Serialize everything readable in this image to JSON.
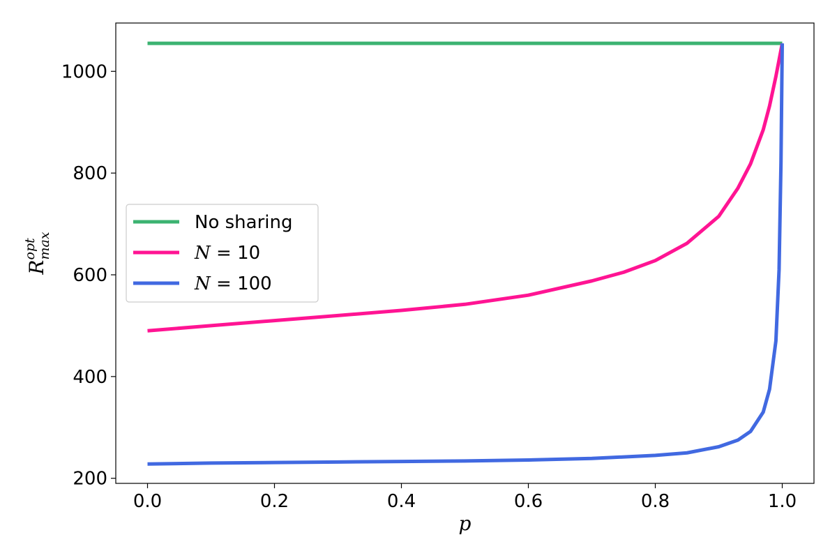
{
  "chart_data": {
    "type": "line",
    "title": "",
    "xlabel": "p",
    "ylabel": {
      "base": "R",
      "sup": "opt",
      "sub": "max"
    },
    "xlim": [
      -0.05,
      1.05
    ],
    "ylim": [
      190,
      1095
    ],
    "xticks": [
      0.0,
      0.2,
      0.4,
      0.6,
      0.8,
      1.0
    ],
    "xtick_labels": [
      "0.0",
      "0.2",
      "0.4",
      "0.6",
      "0.8",
      "1.0"
    ],
    "yticks": [
      200,
      400,
      600,
      800,
      1000
    ],
    "ytick_labels": [
      "200",
      "400",
      "600",
      "800",
      "1000"
    ],
    "grid": false,
    "legend_position": "center-left",
    "series": [
      {
        "name": "No sharing",
        "legend_parts": [
          {
            "text": "No sharing",
            "italic": false
          }
        ],
        "color": "#3cb371",
        "points": [
          [
            0.0,
            1055
          ],
          [
            1.0,
            1055
          ]
        ]
      },
      {
        "name": "N = 10",
        "legend_parts": [
          {
            "text": "N",
            "italic": true
          },
          {
            "text": " = 10",
            "italic": false
          }
        ],
        "color": "#ff1493",
        "points": [
          [
            0.0,
            490
          ],
          [
            0.1,
            500
          ],
          [
            0.2,
            510
          ],
          [
            0.3,
            520
          ],
          [
            0.4,
            530
          ],
          [
            0.5,
            542
          ],
          [
            0.6,
            560
          ],
          [
            0.7,
            588
          ],
          [
            0.75,
            605
          ],
          [
            0.8,
            628
          ],
          [
            0.85,
            662
          ],
          [
            0.9,
            715
          ],
          [
            0.93,
            770
          ],
          [
            0.95,
            818
          ],
          [
            0.97,
            885
          ],
          [
            0.98,
            932
          ],
          [
            0.99,
            990
          ],
          [
            1.0,
            1055
          ]
        ]
      },
      {
        "name": "N = 100",
        "legend_parts": [
          {
            "text": "N",
            "italic": true
          },
          {
            "text": " = 100",
            "italic": false
          }
        ],
        "color": "#4169e1",
        "points": [
          [
            0.0,
            228
          ],
          [
            0.1,
            230
          ],
          [
            0.2,
            231
          ],
          [
            0.3,
            232
          ],
          [
            0.4,
            233
          ],
          [
            0.5,
            234
          ],
          [
            0.6,
            236
          ],
          [
            0.7,
            239
          ],
          [
            0.8,
            245
          ],
          [
            0.85,
            250
          ],
          [
            0.9,
            262
          ],
          [
            0.93,
            275
          ],
          [
            0.95,
            292
          ],
          [
            0.97,
            330
          ],
          [
            0.98,
            375
          ],
          [
            0.99,
            470
          ],
          [
            0.995,
            610
          ],
          [
            0.998,
            820
          ],
          [
            1.0,
            1055
          ]
        ]
      }
    ]
  }
}
